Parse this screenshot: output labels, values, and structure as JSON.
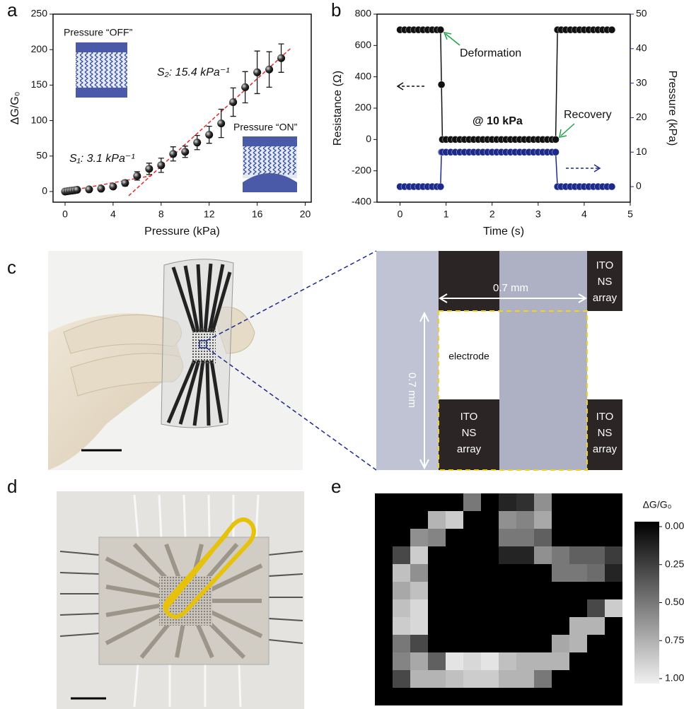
{
  "chart_data": [
    {
      "panel": "a",
      "type": "scatter",
      "x_label": "Pressure (kPa)",
      "y_label": "ΔG/G₀",
      "series": [
        {
          "color": "#1a1a1a",
          "x": [
            0,
            0.2,
            0.4,
            0.6,
            0.8,
            1,
            2,
            3,
            4,
            5,
            6,
            7,
            8,
            9,
            10,
            11,
            12,
            13,
            14,
            15,
            16,
            17,
            18
          ],
          "values": [
            0,
            0.5,
            0.9,
            1.3,
            1.8,
            2.4,
            3,
            4,
            7,
            12,
            22,
            32,
            37,
            53,
            56,
            69,
            80,
            96,
            126,
            147,
            168,
            172,
            188
          ],
          "errors": [
            0.5,
            0.5,
            0.5,
            0.5,
            0.5,
            0.5,
            1,
            1.5,
            2,
            4,
            6,
            8,
            10,
            10,
            8,
            10,
            12,
            20,
            20,
            22,
            30,
            25,
            20
          ]
        }
      ],
      "fits": [
        {
          "color": "#e8282b",
          "x": [
            0,
            7.2
          ],
          "values": [
            0,
            22.3
          ]
        },
        {
          "color": "#e8282b",
          "x": [
            5.3,
            18.8
          ],
          "values": [
            -6,
            202
          ]
        }
      ],
      "annotations": [
        "S₁: 3.1 kPa⁻¹",
        "S₂: 15.4 kPa⁻¹"
      ],
      "insets": [
        "Pressure “OFF”",
        "Pressure “ON”"
      ],
      "xlim": [
        -1,
        20.5
      ],
      "xticks": [
        0,
        4,
        8,
        12,
        16,
        20
      ],
      "ylim": [
        -15,
        250
      ],
      "yticks": [
        0,
        50,
        100,
        150,
        200,
        250
      ]
    },
    {
      "panel": "b",
      "type": "line",
      "x_label": "Time (s)",
      "y_label": "Resistance (Ω)",
      "y2_label": "Pressure (kPa)",
      "x": [
        0,
        0.1,
        0.2,
        0.3,
        0.4,
        0.5,
        0.6,
        0.7,
        0.8,
        0.88,
        0.9,
        0.92,
        1,
        1.1,
        1.2,
        1.3,
        1.4,
        1.5,
        1.6,
        1.7,
        1.8,
        1.9,
        2,
        2.1,
        2.2,
        2.3,
        2.4,
        2.5,
        2.6,
        2.7,
        2.8,
        2.9,
        3,
        3.1,
        3.2,
        3.3,
        3.38,
        3.42,
        3.5,
        3.6,
        3.7,
        3.8,
        3.9,
        4,
        4.1,
        4.2,
        4.3,
        4.4,
        4.5,
        4.6
      ],
      "series": [
        {
          "color": "#111111",
          "values": [
            700,
            700,
            700,
            700,
            700,
            700,
            700,
            700,
            700,
            700,
            350,
            0,
            0,
            0,
            0,
            0,
            0,
            0,
            0,
            0,
            0,
            0,
            0,
            0,
            0,
            0,
            0,
            0,
            0,
            0,
            0,
            0,
            0,
            0,
            0,
            0,
            0,
            700,
            700,
            700,
            700,
            700,
            700,
            700,
            700,
            700,
            700,
            700,
            700,
            700
          ]
        },
        {
          "color": "#1c2a8c",
          "axis": "y2",
          "values": [
            0,
            0,
            0,
            0,
            0,
            0,
            0,
            0,
            0,
            0,
            10,
            10,
            10,
            10,
            10,
            10,
            10,
            10,
            10,
            10,
            10,
            10,
            10,
            10,
            10,
            10,
            10,
            10,
            10,
            10,
            10,
            10,
            10,
            10,
            10,
            10,
            10,
            0,
            0,
            0,
            0,
            0,
            0,
            0,
            0,
            0,
            0,
            0,
            0,
            0
          ]
        }
      ],
      "annotations": [
        "Deformation",
        "Recovery",
        "@ 10 kPa"
      ],
      "annotation_color": "#1fa34a",
      "xlim": [
        -0.5,
        5
      ],
      "xticks": [
        0,
        1,
        2,
        3,
        4,
        5
      ],
      "ylim": [
        -400,
        800
      ],
      "yticks": [
        -400,
        -200,
        0,
        200,
        400,
        600,
        800
      ],
      "y2lim": [
        -4.5,
        50
      ],
      "y2ticks": [
        0,
        10,
        20,
        30,
        40,
        50
      ]
    },
    {
      "panel": "e",
      "type": "heatmap",
      "colorbar_title": "ΔG/G₀",
      "zlim": [
        0,
        1
      ],
      "colors": [
        "#000000",
        "#f0f0f0"
      ],
      "colorbar_ticks": [
        {
          "value": 0,
          "label": "0.00"
        },
        {
          "value": 0.25,
          "label": "0.25"
        },
        {
          "value": 0.5,
          "label": "0.50"
        },
        {
          "value": 0.75,
          "label": "0.75"
        },
        {
          "value": 1,
          "label": "1.00"
        }
      ],
      "z": [
        [
          0,
          0,
          0,
          0,
          0,
          0.5,
          0,
          0.15,
          0.2,
          0.6,
          0,
          0,
          0,
          0
        ],
        [
          0,
          0,
          0,
          0.75,
          0.85,
          0,
          0,
          0.6,
          0.55,
          0.7,
          0,
          0,
          0,
          0
        ],
        [
          0,
          0,
          0.6,
          0.55,
          0,
          0,
          0,
          0.5,
          0.5,
          0.4,
          0,
          0,
          0,
          0
        ],
        [
          0,
          0.3,
          0.85,
          0,
          0,
          0,
          0,
          0.15,
          0.15,
          0.6,
          0.5,
          0.4,
          0.4,
          0.25
        ],
        [
          0,
          0.8,
          0.6,
          0,
          0,
          0,
          0,
          0,
          0,
          0,
          0.5,
          0.5,
          0.45,
          0.15
        ],
        [
          0,
          0.7,
          0.8,
          0,
          0,
          0,
          0,
          0,
          0,
          0,
          0,
          0,
          0,
          0
        ],
        [
          0,
          0.8,
          0.9,
          0,
          0,
          0,
          0,
          0,
          0,
          0,
          0,
          0,
          0.3,
          0.85
        ],
        [
          0,
          0.85,
          0.9,
          0,
          0,
          0,
          0,
          0,
          0,
          0,
          0,
          0.75,
          0.75,
          0
        ],
        [
          0,
          0.5,
          0.3,
          0,
          0,
          0,
          0,
          0,
          0,
          0,
          0.7,
          0.75,
          0,
          0
        ],
        [
          0,
          0.55,
          0.7,
          0.4,
          0.95,
          0.9,
          0.95,
          0.8,
          0.75,
          0.75,
          0.75,
          0,
          0,
          0
        ],
        [
          0,
          0.3,
          0.75,
          0.75,
          0.8,
          0.85,
          0.85,
          0.75,
          0.75,
          0.5,
          0,
          0,
          0,
          0
        ],
        [
          0,
          0,
          0,
          0,
          0,
          0,
          0,
          0,
          0,
          0,
          0,
          0,
          0,
          0
        ]
      ]
    }
  ],
  "photos": [
    {
      "panel": "c",
      "scale_labels": [
        "0.7 mm",
        "0.7 mm"
      ],
      "region_label": "electrode",
      "pad_labels": [
        [
          "ITO",
          "NS",
          "array"
        ],
        [
          "ITO",
          "NS",
          "array"
        ],
        [
          "ITO",
          "NS",
          "array"
        ]
      ]
    },
    {
      "panel": "d"
    }
  ]
}
